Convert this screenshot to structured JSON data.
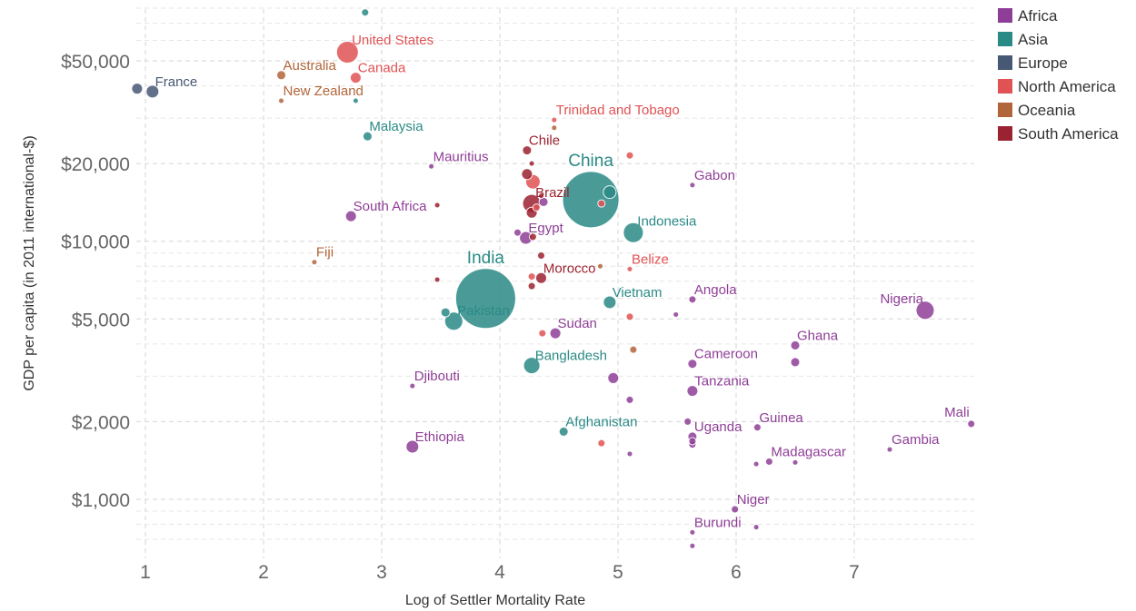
{
  "chart_data": {
    "type": "scatter",
    "xlabel": "Log of Settler Mortality Rate",
    "ylabel": "GDP per capita (in 2011 international-$)",
    "xlim": [
      0.95,
      8.0
    ],
    "ylim": [
      650,
      80000
    ],
    "y_scale": "log",
    "grid": true,
    "legend_position": "top-right",
    "x_ticks": [
      1,
      2,
      3,
      4,
      5,
      6,
      7
    ],
    "x_tick_labels": [
      "1",
      "2",
      "3",
      "4",
      "5",
      "6",
      "7"
    ],
    "y_ticks": [
      1000,
      2000,
      5000,
      10000,
      20000,
      50000
    ],
    "y_tick_labels": [
      "$1,000",
      "$2,000",
      "$5,000",
      "$10,000",
      "$20,000",
      "$50,000"
    ],
    "regions": [
      {
        "name": "Africa",
        "color": "#8e3e96"
      },
      {
        "name": "Asia",
        "color": "#2a8a86"
      },
      {
        "name": "Europe",
        "color": "#475874"
      },
      {
        "name": "North America",
        "color": "#e05253"
      },
      {
        "name": "Oceania",
        "color": "#b2653a"
      },
      {
        "name": "South America",
        "color": "#9b2230"
      }
    ],
    "points": [
      {
        "label": "United States",
        "x": 2.71,
        "y": 54000,
        "region": "North America",
        "size": 12
      },
      {
        "label": "Canada",
        "x": 2.78,
        "y": 43000,
        "region": "North America",
        "size": 6
      },
      {
        "label": "Australia",
        "x": 2.15,
        "y": 44000,
        "region": "Oceania",
        "size": 5
      },
      {
        "label": "New Zealand",
        "x": 2.15,
        "y": 35000,
        "region": "Oceania",
        "size": 3
      },
      {
        "label": "France",
        "x": 1.06,
        "y": 38000,
        "region": "Europe",
        "size": 7
      },
      {
        "label": "",
        "x": 0.93,
        "y": 39000,
        "region": "Europe",
        "size": 6
      },
      {
        "label": "",
        "x": 2.86,
        "y": 77000,
        "region": "Asia",
        "size": 4
      },
      {
        "label": "",
        "x": 2.78,
        "y": 35000,
        "region": "Asia",
        "size": 3
      },
      {
        "label": "Malaysia",
        "x": 2.88,
        "y": 25500,
        "region": "Asia",
        "size": 5
      },
      {
        "label": "Mauritius",
        "x": 3.42,
        "y": 19500,
        "region": "Africa",
        "size": 3
      },
      {
        "label": "South Africa",
        "x": 2.74,
        "y": 12500,
        "region": "Africa",
        "size": 6
      },
      {
        "label": "",
        "x": 3.47,
        "y": 13800,
        "region": "South America",
        "size": 3
      },
      {
        "label": "Fiji",
        "x": 2.43,
        "y": 8300,
        "region": "Oceania",
        "size": 3
      },
      {
        "label": "Trinidad and Tobago",
        "x": 4.46,
        "y": 29500,
        "region": "North America",
        "size": 3
      },
      {
        "label": "",
        "x": 4.46,
        "y": 27500,
        "region": "Oceania",
        "size": 3
      },
      {
        "label": "Chile",
        "x": 4.23,
        "y": 22500,
        "region": "South America",
        "size": 5
      },
      {
        "label": "",
        "x": 4.27,
        "y": 20000,
        "region": "South America",
        "size": 3
      },
      {
        "label": "",
        "x": 4.23,
        "y": 18200,
        "region": "South America",
        "size": 6
      },
      {
        "label": "",
        "x": 4.28,
        "y": 17000,
        "region": "North America",
        "size": 8
      },
      {
        "label": "Brazil",
        "x": 4.27,
        "y": 14000,
        "region": "South America",
        "size": 10
      },
      {
        "label": "",
        "x": 4.35,
        "y": 15000,
        "region": "South America",
        "size": 3
      },
      {
        "label": "",
        "x": 4.37,
        "y": 14200,
        "region": "Africa",
        "size": 5
      },
      {
        "label": "",
        "x": 4.27,
        "y": 12900,
        "region": "South America",
        "size": 6
      },
      {
        "label": "",
        "x": 4.31,
        "y": 13500,
        "region": "North America",
        "size": 4
      },
      {
        "label": "China",
        "x": 4.77,
        "y": 14500,
        "region": "Asia",
        "size": 31
      },
      {
        "label": "",
        "x": 4.93,
        "y": 15500,
        "region": "Asia",
        "size": 7
      },
      {
        "label": "",
        "x": 4.86,
        "y": 14000,
        "region": "North America",
        "size": 4
      },
      {
        "label": "",
        "x": 5.1,
        "y": 21500,
        "region": "North America",
        "size": 4
      },
      {
        "label": "Gabon",
        "x": 5.63,
        "y": 16500,
        "region": "Africa",
        "size": 3
      },
      {
        "label": "Indonesia",
        "x": 5.13,
        "y": 10800,
        "region": "Asia",
        "size": 11
      },
      {
        "label": "Egypt",
        "x": 4.22,
        "y": 10300,
        "region": "Africa",
        "size": 7
      },
      {
        "label": "",
        "x": 4.15,
        "y": 10800,
        "region": "Africa",
        "size": 4
      },
      {
        "label": "",
        "x": 4.28,
        "y": 10400,
        "region": "South America",
        "size": 4
      },
      {
        "label": "India",
        "x": 3.88,
        "y": 6000,
        "region": "Asia",
        "size": 33
      },
      {
        "label": "",
        "x": 3.47,
        "y": 7100,
        "region": "South America",
        "size": 3
      },
      {
        "label": "Pakistan",
        "x": 3.61,
        "y": 4900,
        "region": "Asia",
        "size": 10
      },
      {
        "label": "",
        "x": 3.54,
        "y": 5300,
        "region": "Asia",
        "size": 5
      },
      {
        "label": "",
        "x": 4.35,
        "y": 8800,
        "region": "South America",
        "size": 4
      },
      {
        "label": "",
        "x": 4.27,
        "y": 7300,
        "region": "North America",
        "size": 4
      },
      {
        "label": "",
        "x": 4.27,
        "y": 6700,
        "region": "South America",
        "size": 4
      },
      {
        "label": "Morocco",
        "x": 4.35,
        "y": 7200,
        "region": "South America",
        "size": 6
      },
      {
        "label": "",
        "x": 4.85,
        "y": 8000,
        "region": "Oceania",
        "size": 3
      },
      {
        "label": "Belize",
        "x": 5.1,
        "y": 7800,
        "region": "North America",
        "size": 3
      },
      {
        "label": "Vietnam",
        "x": 4.93,
        "y": 5800,
        "region": "Asia",
        "size": 7
      },
      {
        "label": "",
        "x": 5.1,
        "y": 5100,
        "region": "North America",
        "size": 4
      },
      {
        "label": "Angola",
        "x": 5.63,
        "y": 5950,
        "region": "Africa",
        "size": 4
      },
      {
        "label": "",
        "x": 5.49,
        "y": 5200,
        "region": "Africa",
        "size": 3
      },
      {
        "label": "Nigeria",
        "x": 7.6,
        "y": 5400,
        "region": "Africa",
        "size": 10
      },
      {
        "label": "Sudan",
        "x": 4.47,
        "y": 4400,
        "region": "Africa",
        "size": 6
      },
      {
        "label": "",
        "x": 4.36,
        "y": 4400,
        "region": "North America",
        "size": 4
      },
      {
        "label": "",
        "x": 5.13,
        "y": 3800,
        "region": "Oceania",
        "size": 4
      },
      {
        "label": "Bangladesh",
        "x": 4.27,
        "y": 3300,
        "region": "Asia",
        "size": 9
      },
      {
        "label": "Cameroon",
        "x": 5.63,
        "y": 3350,
        "region": "Africa",
        "size": 5
      },
      {
        "label": "Ghana",
        "x": 6.5,
        "y": 3950,
        "region": "Africa",
        "size": 5
      },
      {
        "label": "",
        "x": 6.5,
        "y": 3400,
        "region": "Africa",
        "size": 5
      },
      {
        "label": "",
        "x": 4.96,
        "y": 2950,
        "region": "Africa",
        "size": 6
      },
      {
        "label": "Djibouti",
        "x": 3.26,
        "y": 2750,
        "region": "Africa",
        "size": 3
      },
      {
        "label": "Tanzania",
        "x": 5.63,
        "y": 2630,
        "region": "Africa",
        "size": 6
      },
      {
        "label": "",
        "x": 5.1,
        "y": 2430,
        "region": "Africa",
        "size": 4
      },
      {
        "label": "",
        "x": 5.59,
        "y": 2000,
        "region": "Africa",
        "size": 4
      },
      {
        "label": "Uganda",
        "x": 5.63,
        "y": 1750,
        "region": "Africa",
        "size": 5
      },
      {
        "label": "",
        "x": 5.63,
        "y": 1630,
        "region": "Africa",
        "size": 4
      },
      {
        "label": "",
        "x": 5.63,
        "y": 1680,
        "region": "Africa",
        "size": 4
      },
      {
        "label": "Guinea",
        "x": 6.18,
        "y": 1900,
        "region": "Africa",
        "size": 4
      },
      {
        "label": "Mali",
        "x": 7.99,
        "y": 1960,
        "region": "Africa",
        "size": 4
      },
      {
        "label": "Gambia",
        "x": 7.3,
        "y": 1560,
        "region": "Africa",
        "size": 3
      },
      {
        "label": "Madagascar",
        "x": 6.28,
        "y": 1400,
        "region": "Africa",
        "size": 4
      },
      {
        "label": "",
        "x": 6.17,
        "y": 1370,
        "region": "Africa",
        "size": 3
      },
      {
        "label": "",
        "x": 6.5,
        "y": 1390,
        "region": "Africa",
        "size": 3
      },
      {
        "label": "Afghanistan",
        "x": 4.54,
        "y": 1830,
        "region": "Asia",
        "size": 5
      },
      {
        "label": "",
        "x": 4.86,
        "y": 1650,
        "region": "North America",
        "size": 4
      },
      {
        "label": "",
        "x": 5.1,
        "y": 1500,
        "region": "Africa",
        "size": 3
      },
      {
        "label": "Ethiopia",
        "x": 3.26,
        "y": 1600,
        "region": "Africa",
        "size": 7
      },
      {
        "label": "Niger",
        "x": 5.99,
        "y": 915,
        "region": "Africa",
        "size": 4
      },
      {
        "label": "Burundi",
        "x": 5.63,
        "y": 745,
        "region": "Africa",
        "size": 3
      },
      {
        "label": "",
        "x": 6.17,
        "y": 780,
        "region": "Africa",
        "size": 3
      },
      {
        "label": "",
        "x": 5.63,
        "y": 660,
        "region": "Africa",
        "size": 3
      }
    ]
  }
}
